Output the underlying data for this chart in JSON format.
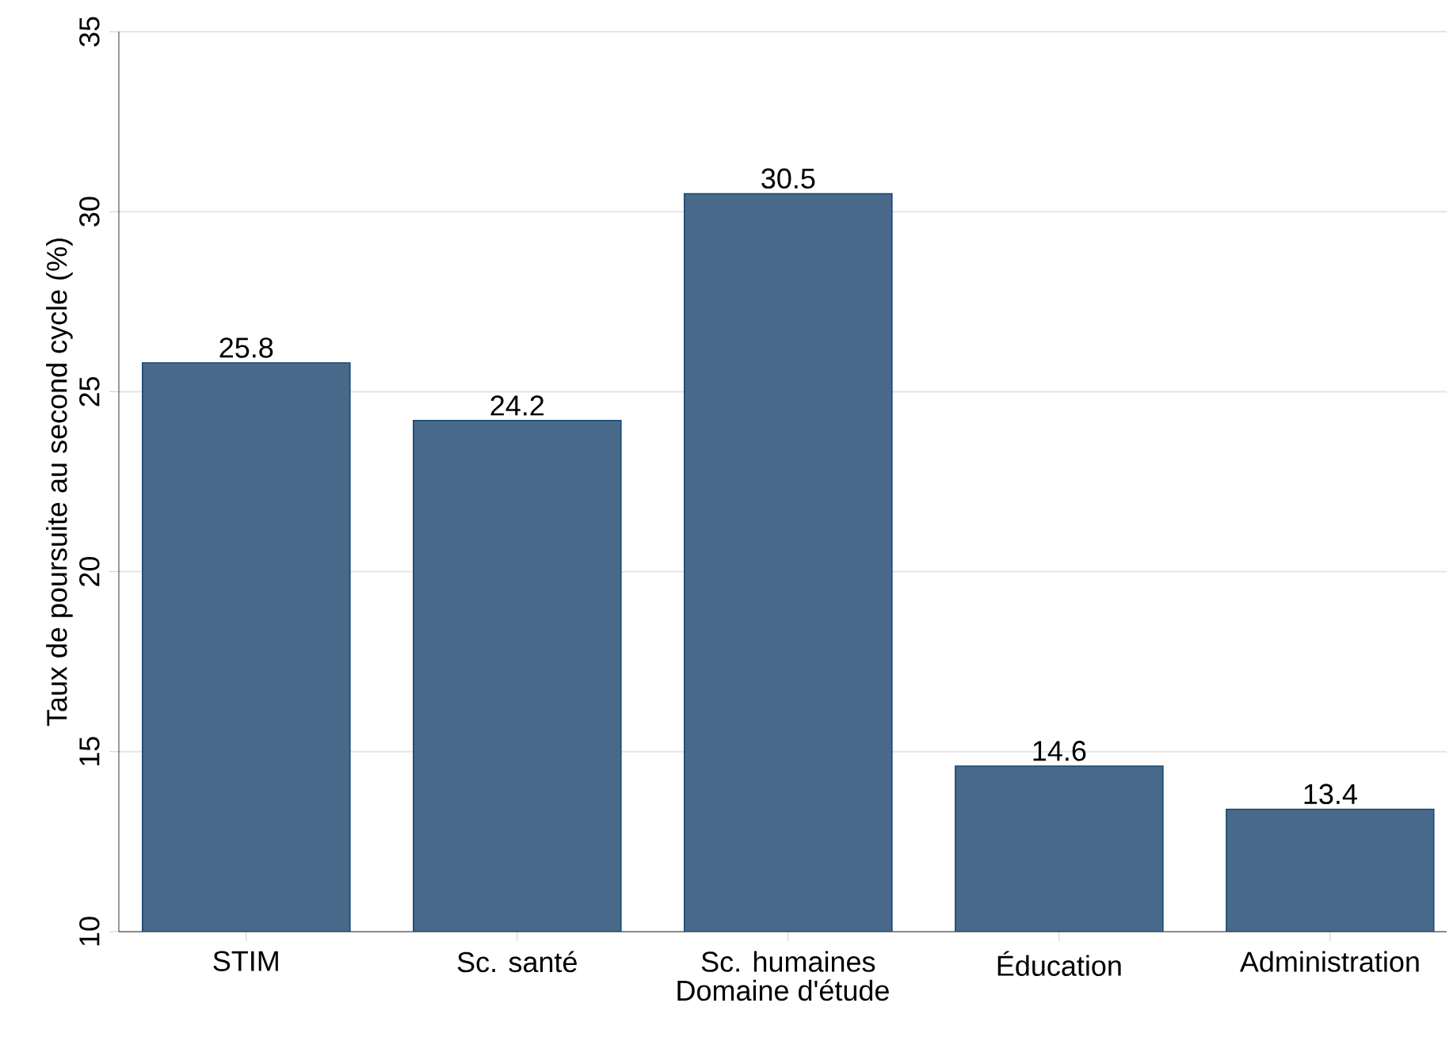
{
  "chart_data": {
    "type": "bar",
    "categories": [
      "STIM",
      "Sc. santé",
      "Sc. humaines",
      "Éducation",
      "Administration"
    ],
    "values": [
      25.8,
      24.2,
      30.5,
      14.6,
      13.4
    ],
    "color": "#48698a",
    "xlabel": "Domaine d'étude",
    "ylabel": "Taux de poursuite au second cycle (%)",
    "ylim": [
      10,
      35
    ],
    "yticks": [
      10,
      15,
      20,
      25,
      30,
      35
    ],
    "grid": "y",
    "data_labels": true
  }
}
